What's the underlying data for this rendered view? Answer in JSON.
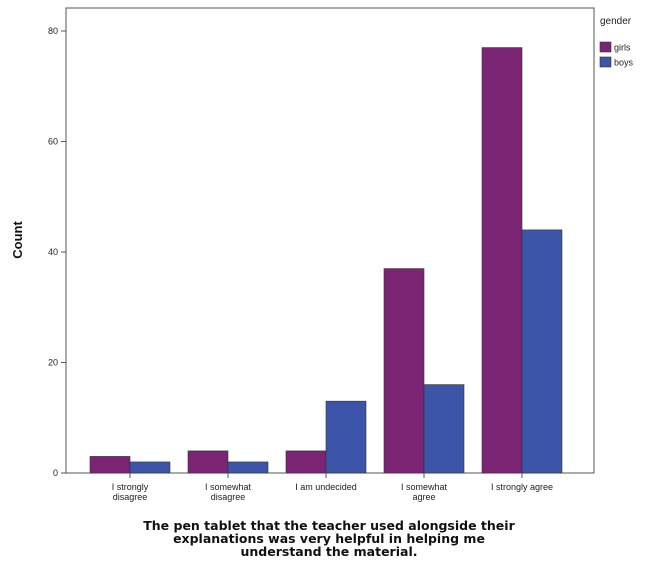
{
  "chart_data": {
    "type": "bar",
    "categories": [
      [
        "I strongly",
        "disagree"
      ],
      [
        "I somewhat",
        "disagree"
      ],
      [
        "I am undecided"
      ],
      [
        "I somewhat",
        "agree"
      ],
      [
        "I strongly agree"
      ]
    ],
    "series": [
      {
        "name": "girls",
        "color": "#7b2473",
        "values": [
          3,
          4,
          4,
          37,
          77
        ]
      },
      {
        "name": "boys",
        "color": "#3d55a8",
        "values": [
          2,
          2,
          13,
          16,
          44
        ]
      }
    ],
    "ylim": [
      0,
      80
    ],
    "yticks": [
      0,
      20,
      40,
      60,
      80
    ],
    "ylabel": "Count",
    "xlabel": [
      "The pen tablet that the teacher used alongside their",
      "explanations was very helpful in helping me",
      "understand the material."
    ],
    "legend": {
      "title": "gender",
      "position": "top-right"
    },
    "grid": false
  }
}
